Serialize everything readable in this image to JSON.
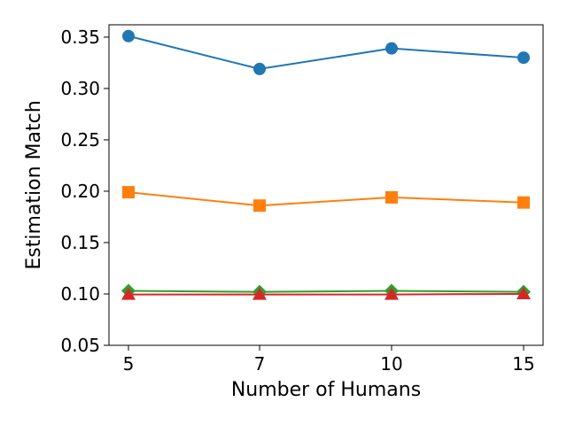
{
  "chart_data": {
    "type": "line",
    "title": "",
    "xlabel": "Number of Humans",
    "ylabel": "Estimation Match",
    "x": [
      5,
      7,
      10,
      15
    ],
    "x_tick_labels": [
      "5",
      "7",
      "10",
      "15"
    ],
    "y_ticks": [
      0.05,
      0.1,
      0.15,
      0.2,
      0.25,
      0.3,
      0.35
    ],
    "y_tick_labels": [
      "0.05",
      "0.10",
      "0.15",
      "0.20",
      "0.25",
      "0.30",
      "0.35"
    ],
    "ylim": [
      0.05,
      0.362
    ],
    "grid": false,
    "legend": "none",
    "series": [
      {
        "values": [
          0.351,
          0.319,
          0.339,
          0.33
        ],
        "color": "#1f77b4",
        "marker": "circle"
      },
      {
        "values": [
          0.199,
          0.186,
          0.194,
          0.189
        ],
        "color": "#ff7f0e",
        "marker": "square"
      },
      {
        "values": [
          0.103,
          0.102,
          0.103,
          0.102
        ],
        "color": "#2ca02c",
        "marker": "diamond"
      },
      {
        "values": [
          0.0995,
          0.0995,
          0.0995,
          0.1
        ],
        "color": "#d62728",
        "marker": "triangle"
      }
    ]
  }
}
